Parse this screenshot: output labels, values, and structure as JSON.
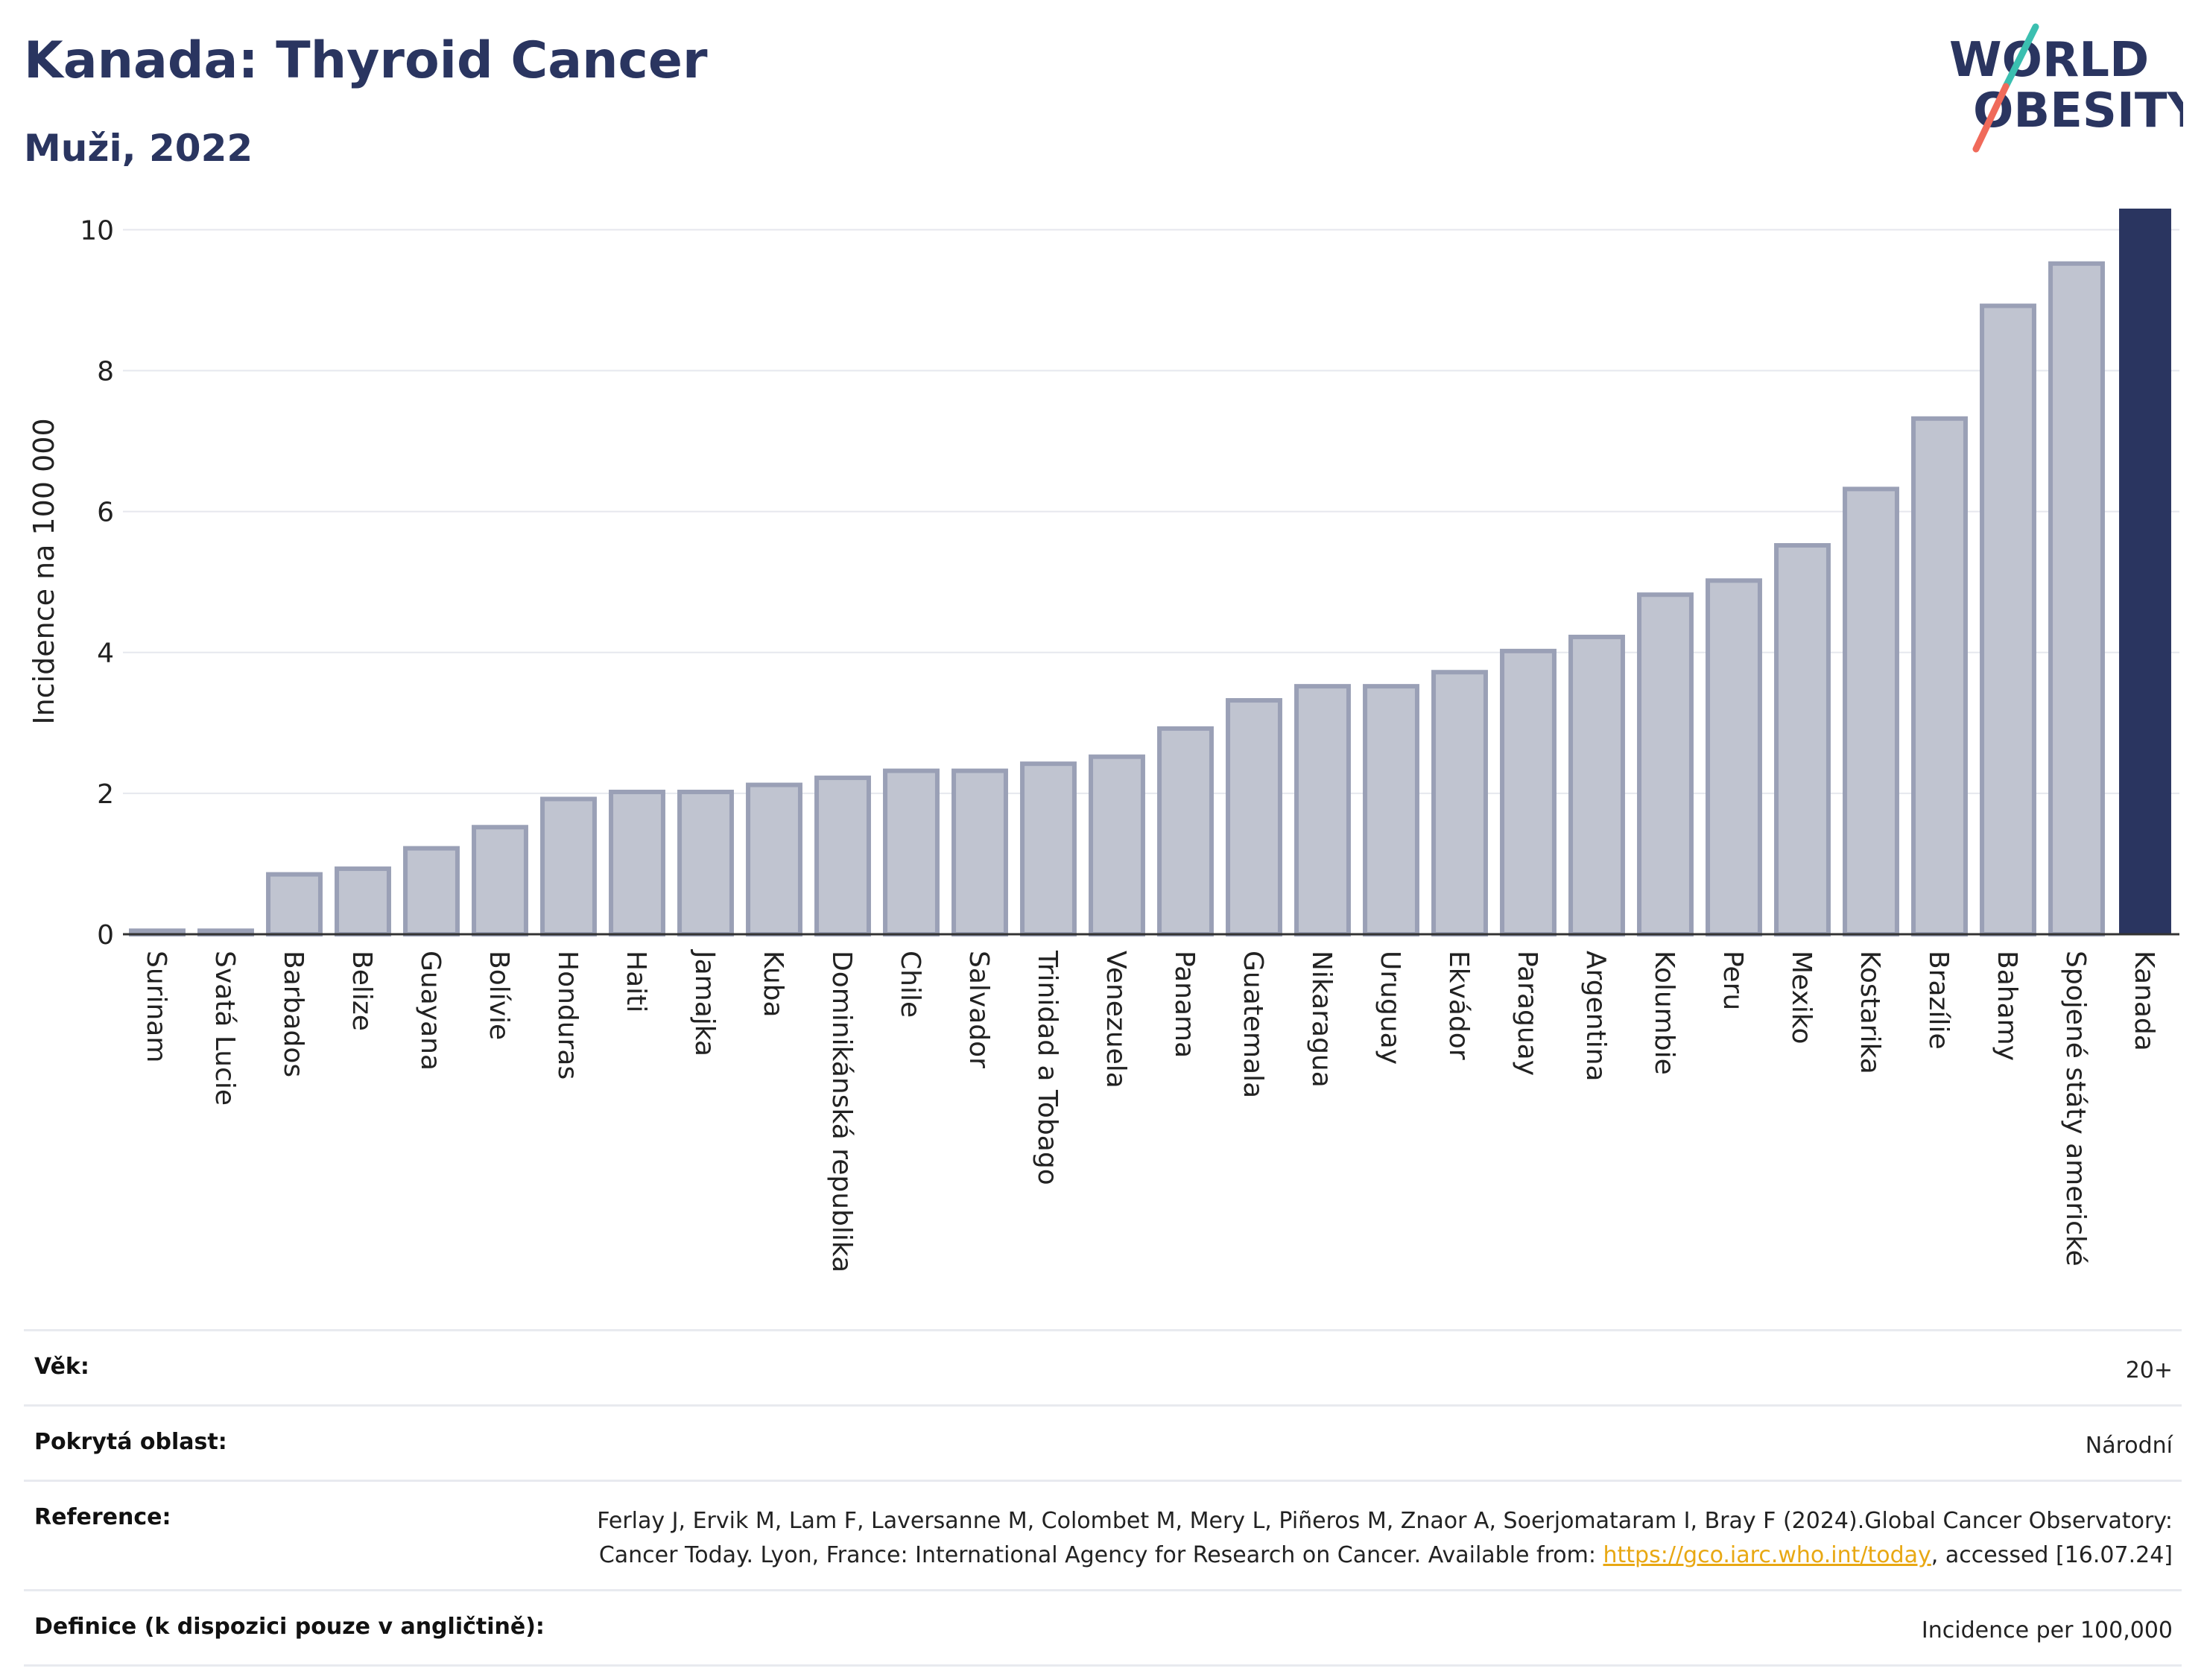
{
  "header": {
    "title": "Kanada: Thyroid Cancer",
    "subtitle": "Muži, 2022"
  },
  "logo": {
    "line1": "WORLD",
    "line2": "OBESITY",
    "slash_colors": [
      "#3bbfb0",
      "#f06a5a"
    ]
  },
  "chart_data": {
    "type": "bar",
    "title": "",
    "xlabel": "",
    "ylabel": "Incidence na 100 000",
    "ylim": [
      0,
      10.3
    ],
    "yticks": [
      0,
      2,
      4,
      6,
      8,
      10
    ],
    "grid": true,
    "highlight": "Kanada",
    "colors": {
      "bar": "#c0c4d0",
      "bar_border": "#9aa0b6",
      "highlight": "#2a3560"
    },
    "categories": [
      "Surinam",
      "Svatá Lucie",
      "Barbados",
      "Belize",
      "Guayana",
      "Bolívie",
      "Honduras",
      "Haiti",
      "Jamajka",
      "Kuba",
      "Dominikánská republika",
      "Chile",
      "Salvador",
      "Trinidad a Tobago",
      "Venezuela",
      "Panama",
      "Guatemala",
      "Nikaragua",
      "Uruguay",
      "Ekvádor",
      "Paraguay",
      "Argentina",
      "Kolumbie",
      "Peru",
      "Mexiko",
      "Kostarika",
      "Brazílie",
      "Bahamy",
      "Spojené státy americké",
      "Kanada"
    ],
    "values": [
      0.05,
      0.05,
      0.85,
      0.93,
      1.22,
      1.52,
      1.92,
      2.02,
      2.02,
      2.12,
      2.22,
      2.32,
      2.32,
      2.42,
      2.52,
      2.92,
      3.32,
      3.52,
      3.52,
      3.72,
      4.02,
      4.22,
      4.82,
      5.02,
      5.52,
      6.32,
      7.32,
      8.92,
      9.52,
      10.3
    ]
  },
  "info": {
    "age_label": "Věk:",
    "age_value": "20+",
    "coverage_label": "Pokrytá oblast:",
    "coverage_value": "Národní",
    "reference_label": "Reference:",
    "reference_text": "Ferlay J, Ervik M, Lam F, Laversanne M, Colombet M, Mery L, Piñeros M, Znaor A, Soerjomataram I, Bray F (2024).Global Cancer Observatory: Cancer Today. Lyon, France: International Agency for Research on Cancer. Available from: ",
    "reference_link": "https://gco.iarc.who.int/today",
    "reference_tail": ", accessed [16.07.24]",
    "definition_label": "Definice (k dispozici pouze v angličtině):",
    "definition_value": "Incidence per 100,000"
  }
}
